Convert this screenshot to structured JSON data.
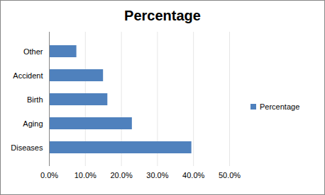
{
  "chart_data": {
    "type": "bar",
    "title": "Percentage",
    "orientation": "horizontal",
    "categories": [
      "Other",
      "Accident",
      "Birth",
      "Aging",
      "Diseases"
    ],
    "series": [
      {
        "name": "Percentage",
        "color": "#4f81bd",
        "values": [
          7.6,
          15.0,
          16.2,
          23.0,
          39.5
        ]
      }
    ],
    "xlim": [
      0,
      50
    ],
    "xticks": [
      {
        "value": 0,
        "label": "0.0%"
      },
      {
        "value": 10,
        "label": "10.0%"
      },
      {
        "value": 20,
        "label": "20.0%"
      },
      {
        "value": 30,
        "label": "30.0%"
      },
      {
        "value": 40,
        "label": "40.0%"
      },
      {
        "value": 50,
        "label": "50.0%"
      }
    ],
    "grid": true,
    "legend": "right"
  }
}
